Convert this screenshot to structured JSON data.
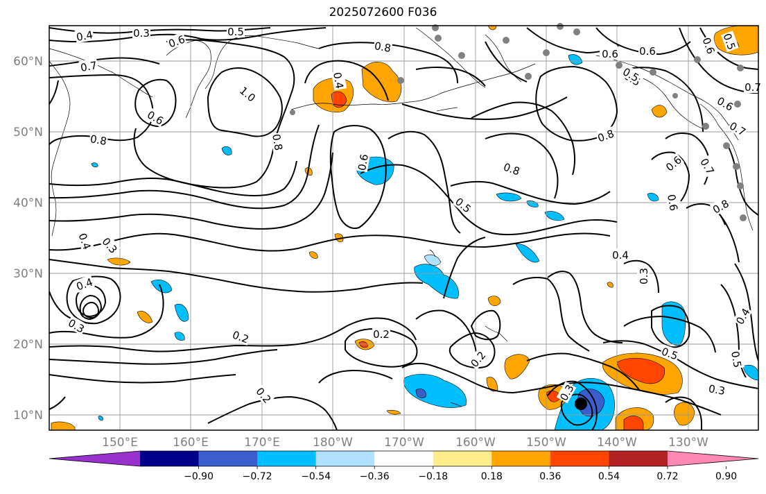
{
  "title": "2025072600 F036",
  "lat_labels": [
    "60°N",
    "50°N",
    "40°N",
    "30°N",
    "20°N",
    "10°N"
  ],
  "lon_labels": [
    "150°E",
    "160°E",
    "170°E",
    "180°W",
    "170°W",
    "160°W",
    "150°W",
    "140°W",
    "130°W"
  ],
  "colorbar": {
    "colors": [
      "#9932cc",
      "#00008b",
      "#3a5fcd",
      "#00bfff",
      "#b0e2ff",
      "#ffffff",
      "#ffec8b",
      "#ffa500",
      "#ff4500",
      "#b22222",
      "#ff88b4"
    ],
    "tick_labels": [
      "−0.90",
      "−0.72",
      "−0.54",
      "−0.36",
      "−0.18",
      "0.18",
      "0.36",
      "0.54",
      "0.72",
      "0.90"
    ]
  },
  "contour_labels": [
    "0.4",
    "0.3",
    "0.6",
    "0.5",
    "0.7",
    "1.0",
    "0.6",
    "0.8",
    "0.8",
    "0.4",
    "0.8",
    "0.6",
    "0.8",
    "0.5",
    "0.8",
    "0.8",
    "0.6",
    "0.6",
    "0.5",
    "0.7",
    "0.6",
    "0.7",
    "0.6",
    "0.6",
    "0.8",
    "0.5",
    "0.4",
    "0.3",
    "0.4",
    "0.3",
    "0.4",
    "0.2",
    "0.2",
    "0.2",
    "0.2",
    "0.3",
    "0.5",
    "0.3",
    "0.3",
    "0.5",
    "0.4",
    "0.6",
    "0.5",
    "0.7"
  ]
}
